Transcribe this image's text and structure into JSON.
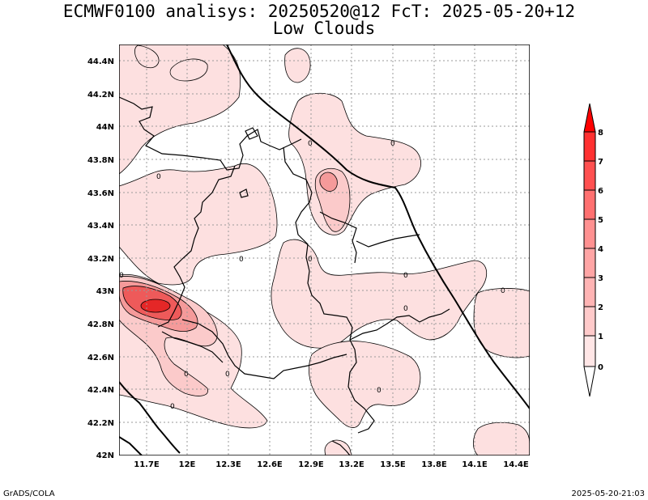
{
  "title": {
    "line1": "ECMWF0100 analisys: 20250520@12 FcT: 2025-05-20+12",
    "line2": "Low Clouds"
  },
  "axes": {
    "lat_labels": [
      "44.4N",
      "44.2N",
      "44N",
      "43.8N",
      "43.6N",
      "43.4N",
      "43.2N",
      "43N",
      "42.8N",
      "42.6N",
      "42.4N",
      "42.2N",
      "42N"
    ],
    "lon_labels": [
      "11.7E",
      "12E",
      "12.3E",
      "12.6E",
      "12.9E",
      "13.2E",
      "13.5E",
      "13.8E",
      "14.1E",
      "14.4E"
    ],
    "lat_range": [
      42.0,
      44.5
    ],
    "lon_range": [
      11.5,
      14.5
    ],
    "grid": true
  },
  "colorbar": {
    "levels": [
      "8",
      "7",
      "6",
      "5",
      "4",
      "3",
      "2",
      "1",
      "0"
    ],
    "colors": [
      "#ff0000",
      "#ff3131",
      "#ff5050",
      "#ff7070",
      "#ff9191",
      "#ffb4b4",
      "#ffcaca",
      "#ffe6e6",
      "#ffffff"
    ]
  },
  "contour_labels": [
    "0",
    "0",
    "0",
    "0",
    "0",
    "0",
    "0",
    "0",
    "0",
    "0",
    "0",
    "0",
    "0"
  ],
  "footer": {
    "left": "GrADS/COLA",
    "right": "2025-05-20-21:03"
  },
  "colors": {
    "light_fill": "#fde0e0",
    "mid_fill": "#fbcaca",
    "strong_fill": "#f59a9a",
    "core_fill": "#ee5a5a",
    "peak_fill": "#e52727",
    "grid": "#9a9a9a"
  }
}
